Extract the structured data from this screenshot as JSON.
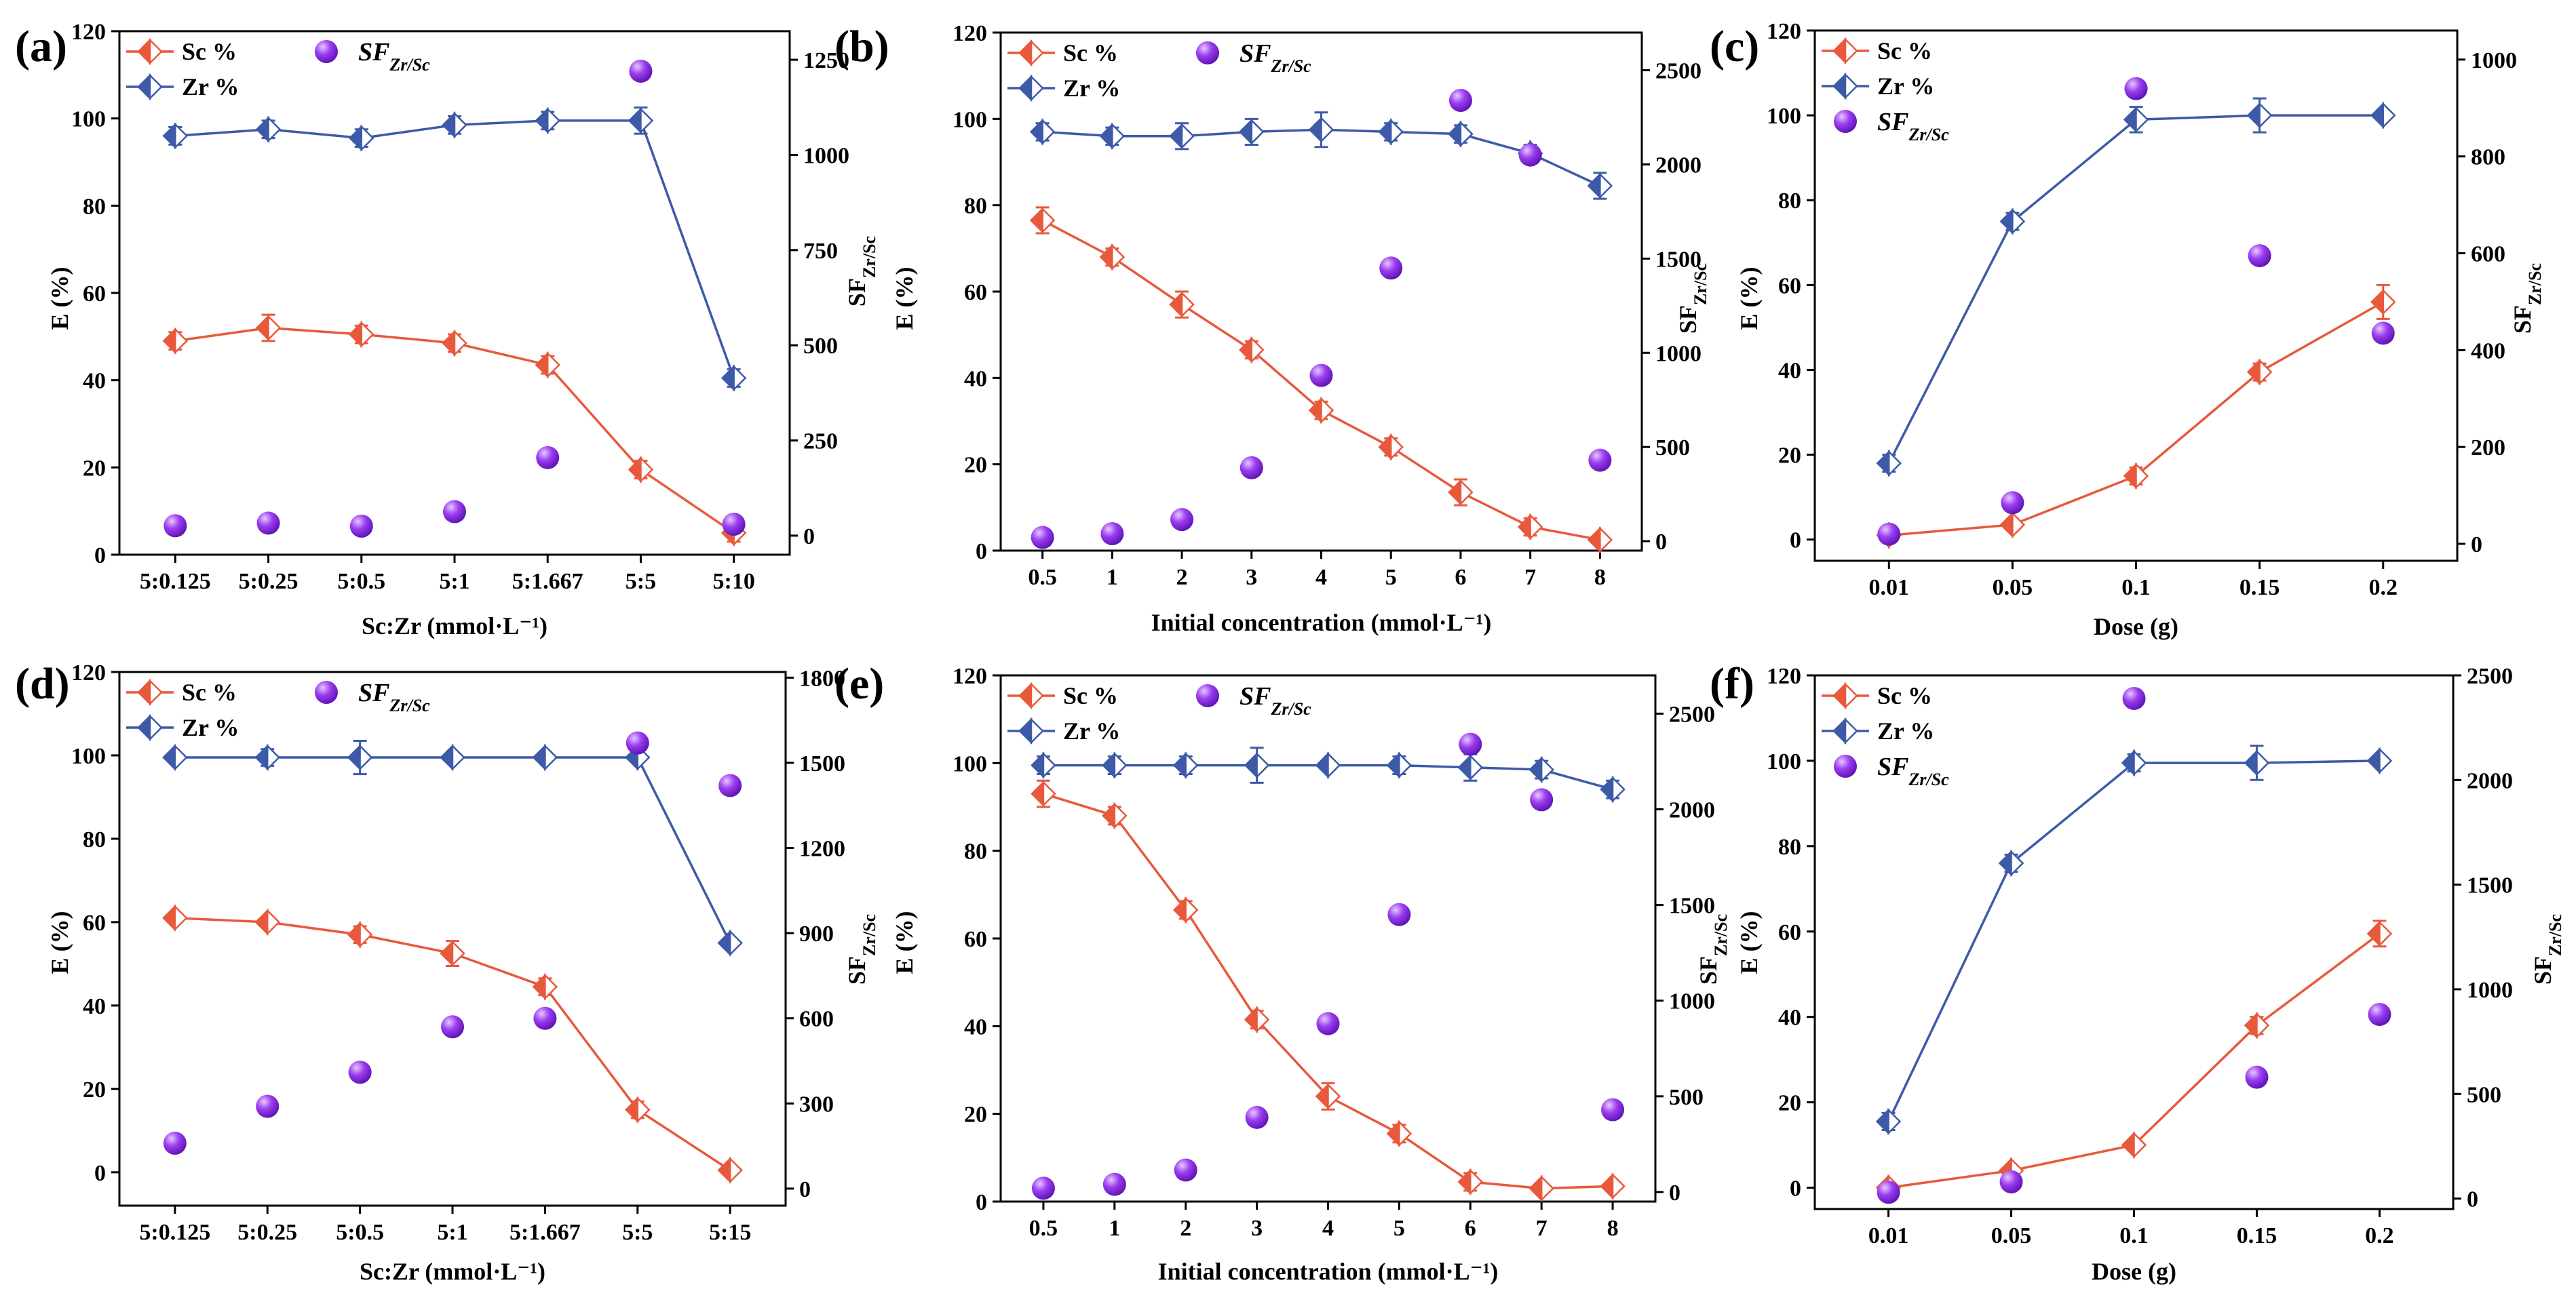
{
  "colors": {
    "sc": "#e8593c",
    "zr": "#3d5aa8",
    "sf": "#8a2be2"
  },
  "legend": {
    "sc": "Sc %",
    "zr": "Zr %",
    "sf_main": "SF",
    "sf_sub": "Zr/Sc"
  },
  "chart_data": [
    {
      "panel": "(a)",
      "type": "line",
      "categories": [
        "5:0.125",
        "5:0.25",
        "5:0.5",
        "5:1",
        "5:1.667",
        "5:5",
        "5:10"
      ],
      "xlabel": "Sc:Zr (mmol·L⁻¹)",
      "ylabel": "E (%)",
      "y2label_main": "SF",
      "y2label_sub": "Zr/Sc",
      "ylim": [
        0,
        120
      ],
      "yticks": [
        0,
        20,
        40,
        60,
        80,
        100,
        120
      ],
      "y2lim": [
        -50,
        1325
      ],
      "y2ticks": [
        0,
        250,
        500,
        750,
        1000,
        1250
      ],
      "legend_layout": "inline",
      "series": [
        {
          "name": "Sc %",
          "values": [
            49,
            52,
            50.5,
            48.5,
            43.5,
            19.5,
            5
          ],
          "errors": [
            2,
            3,
            2,
            2,
            2,
            2,
            2
          ]
        },
        {
          "name": "Zr %",
          "values": [
            96,
            97.5,
            95.5,
            98.5,
            99.5,
            99.5,
            40.5
          ],
          "errors": [
            2,
            2,
            2,
            2,
            2,
            3,
            2
          ]
        }
      ],
      "sf": [
        26,
        33,
        25,
        63,
        205,
        1220,
        30
      ]
    },
    {
      "panel": "(b)",
      "type": "line",
      "categories": [
        "0.5",
        "1",
        "2",
        "3",
        "4",
        "5",
        "6",
        "7",
        "8"
      ],
      "xlabel": "Initial concentration (mmol·L⁻¹)",
      "ylabel": "E (%)",
      "y2label_main": "SF",
      "y2label_sub": "Zr/Sc",
      "ylim": [
        0,
        120
      ],
      "yticks": [
        0,
        20,
        40,
        60,
        80,
        100,
        120
      ],
      "y2lim": [
        -50,
        2700
      ],
      "y2ticks": [
        0,
        500,
        1000,
        1500,
        2000,
        2500
      ],
      "legend_layout": "inline",
      "series": [
        {
          "name": "Sc %",
          "values": [
            76.5,
            68,
            57,
            46.5,
            32.5,
            24,
            13.5,
            5.5,
            2.5
          ],
          "errors": [
            3,
            2,
            3,
            2,
            2,
            2,
            3,
            2,
            1
          ]
        },
        {
          "name": "Zr %",
          "values": [
            97,
            96,
            96,
            97,
            97.5,
            97,
            96.5,
            92,
            84.5
          ],
          "errors": [
            2,
            2,
            3,
            3,
            4,
            2,
            2,
            2,
            3
          ]
        }
      ],
      "sf": [
        20,
        40,
        115,
        390,
        880,
        1450,
        2340,
        2050,
        430
      ]
    },
    {
      "panel": "(c)",
      "type": "line",
      "categories": [
        "0.01",
        "0.05",
        "0.1",
        "0.15",
        "0.2"
      ],
      "xlabel": "Dose (g)",
      "ylabel": "E (%)",
      "y2label_main": "SF",
      "y2label_sub": "Zr/Sc",
      "ylim": [
        -5,
        120
      ],
      "yticks": [
        0,
        20,
        40,
        60,
        80,
        100,
        120
      ],
      "y2lim": [
        -35,
        1060
      ],
      "y2ticks": [
        0,
        200,
        400,
        600,
        800,
        1000
      ],
      "legend_layout": "stacked",
      "series": [
        {
          "name": "Sc %",
          "values": [
            1,
            3.5,
            15,
            39.5,
            56
          ],
          "errors": [
            1,
            1,
            2,
            2,
            4
          ]
        },
        {
          "name": "Zr %",
          "values": [
            18,
            75,
            99,
            100,
            100
          ],
          "errors": [
            2,
            2,
            3,
            4,
            1
          ]
        }
      ],
      "sf": [
        20,
        85,
        940,
        595,
        435
      ]
    },
    {
      "panel": "(d)",
      "type": "line",
      "categories": [
        "5:0.125",
        "5:0.25",
        "5:0.5",
        "5:1",
        "5:1.667",
        "5:5",
        "5:15"
      ],
      "xlabel": "Sc:Zr (mmol·L⁻¹)",
      "ylabel": "E (%)",
      "y2label_main": "SF",
      "y2label_sub": "Zr/Sc",
      "ylim": [
        -8,
        120
      ],
      "yticks": [
        0,
        20,
        40,
        60,
        80,
        100,
        120
      ],
      "y2lim": [
        -60,
        1820
      ],
      "y2ticks": [
        0,
        300,
        600,
        900,
        1200,
        1500,
        1800
      ],
      "legend_layout": "inline",
      "series": [
        {
          "name": "Sc %",
          "values": [
            61,
            60,
            57,
            52.5,
            44.5,
            15,
            0.5
          ],
          "errors": [
            1,
            1,
            2,
            3,
            2,
            2,
            1
          ]
        },
        {
          "name": "Zr %",
          "values": [
            99.5,
            99.5,
            99.5,
            99.5,
            99.5,
            99.5,
            55
          ],
          "errors": [
            1,
            2,
            4,
            1,
            1,
            1,
            1
          ]
        }
      ],
      "sf": [
        160,
        290,
        410,
        570,
        600,
        1570,
        1420
      ]
    },
    {
      "panel": "(e)",
      "type": "line",
      "categories": [
        "0.5",
        "1",
        "2",
        "3",
        "4",
        "5",
        "6",
        "7",
        "8"
      ],
      "xlabel": "Initial concentration (mmol·L⁻¹)",
      "ylabel": "E (%)",
      "y2label_main": "SF",
      "y2label_sub": "Zr/Sc",
      "ylim": [
        0,
        120
      ],
      "yticks": [
        0,
        20,
        40,
        60,
        80,
        100,
        120
      ],
      "y2lim": [
        -50,
        2700
      ],
      "y2ticks": [
        0,
        500,
        1000,
        1500,
        2000,
        2500
      ],
      "legend_layout": "inline",
      "series": [
        {
          "name": "Sc %",
          "values": [
            93,
            88,
            66.5,
            41.5,
            24,
            15.5,
            4.5,
            3,
            3.5
          ],
          "errors": [
            3,
            2,
            2,
            2,
            3,
            2,
            2,
            1,
            1
          ]
        },
        {
          "name": "Zr %",
          "values": [
            99.5,
            99.5,
            99.5,
            99.5,
            99.5,
            99.5,
            99,
            98.5,
            94
          ],
          "errors": [
            2,
            2,
            2,
            4,
            1,
            2,
            3,
            2,
            2
          ]
        }
      ],
      "sf": [
        20,
        40,
        115,
        390,
        880,
        1450,
        2340,
        2050,
        430
      ]
    },
    {
      "panel": "(f)",
      "type": "line",
      "categories": [
        "0.01",
        "0.05",
        "0.1",
        "0.15",
        "0.2"
      ],
      "xlabel": "Dose (g)",
      "ylabel": "E (%)",
      "y2label_main": "SF",
      "y2label_sub": "Zr/Sc",
      "ylim": [
        -5,
        120
      ],
      "yticks": [
        0,
        20,
        40,
        60,
        80,
        100,
        120
      ],
      "y2lim": [
        -50,
        2500
      ],
      "y2ticks": [
        0,
        500,
        1000,
        1500,
        2000,
        2500
      ],
      "legend_layout": "stacked",
      "series": [
        {
          "name": "Sc %",
          "values": [
            0,
            4,
            10,
            38,
            59.5
          ],
          "errors": [
            1,
            1,
            1,
            2,
            3
          ]
        },
        {
          "name": "Zr %",
          "values": [
            15.5,
            76,
            99.5,
            99.5,
            100
          ],
          "errors": [
            2,
            2,
            2,
            4,
            1
          ]
        }
      ],
      "sf": [
        30,
        80,
        2390,
        580,
        880
      ]
    }
  ]
}
